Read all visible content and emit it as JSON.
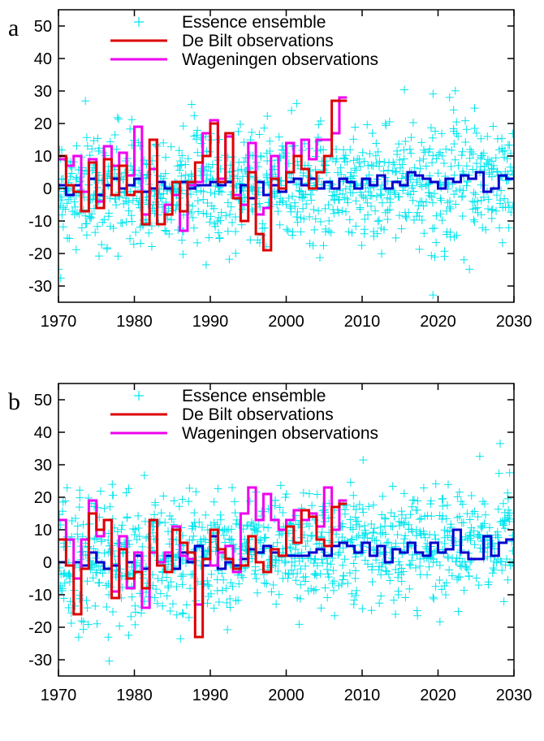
{
  "chart_data": [
    {
      "type": "line",
      "panel_label": "a",
      "xlim": [
        1970,
        2030
      ],
      "ylim": [
        -35,
        55
      ],
      "xticks": [
        1970,
        1980,
        1990,
        2000,
        2010,
        2020,
        2030
      ],
      "yticks": [
        -30,
        -20,
        -10,
        0,
        10,
        20,
        30,
        40,
        50
      ],
      "xtick_labels": [
        "1970",
        "1980",
        "1990",
        "2000",
        "2010",
        "2020",
        "2030"
      ],
      "ytick_labels": [
        "-30",
        "-20",
        "-10",
        "0",
        "10",
        "20",
        "30",
        "40",
        "50"
      ],
      "legend_position": "top-center",
      "series": [
        {
          "name": "Essence ensemble",
          "style": "scatter-plus",
          "color": "#00e5ee"
        },
        {
          "name": "De Bilt observations",
          "style": "step",
          "color": "#dd0000",
          "x": [
            1970,
            1971,
            1972,
            1973,
            1974,
            1975,
            1976,
            1977,
            1978,
            1979,
            1980,
            1981,
            1982,
            1983,
            1984,
            1985,
            1986,
            1987,
            1988,
            1989,
            1990,
            1991,
            1992,
            1993,
            1994,
            1995,
            1996,
            1997,
            1998,
            1999,
            2000,
            2001,
            2002,
            2003,
            2004,
            2005,
            2006,
            2007
          ],
          "y": [
            10,
            1,
            -1,
            -7,
            8,
            -6,
            9,
            -2,
            7,
            -2,
            -1,
            -11,
            15,
            -11,
            -8,
            2,
            -7,
            2,
            8,
            10,
            20,
            2,
            17,
            -3,
            -10,
            5,
            -14,
            -19,
            3,
            0,
            5,
            10,
            6,
            0,
            5,
            10,
            27,
            27
          ]
        },
        {
          "name": "Wageningen observations",
          "style": "step",
          "color": "#ee00ee",
          "x": [
            1970,
            1971,
            1972,
            1973,
            1974,
            1975,
            1976,
            1977,
            1978,
            1979,
            1980,
            1981,
            1982,
            1983,
            1984,
            1985,
            1986,
            1987,
            1988,
            1989,
            1990,
            1991,
            1992,
            1993,
            1994,
            1995,
            1996,
            1997,
            1998,
            1999,
            2000,
            2001,
            2002,
            2003,
            2004,
            2005,
            2006,
            2007
          ],
          "y": [
            9,
            7,
            10,
            -1,
            9,
            -4,
            13,
            7,
            11,
            4,
            19,
            -8,
            6,
            -11,
            -5,
            -2,
            -13,
            1,
            2,
            17,
            21,
            3,
            16,
            -2,
            -5,
            14,
            -8,
            -6,
            10,
            0,
            14,
            10,
            15,
            9,
            15,
            15,
            17,
            28
          ]
        },
        {
          "name": "",
          "style": "step",
          "color": "#0000cc",
          "x": [
            1970,
            1971,
            1972,
            1973,
            1974,
            1975,
            1976,
            1977,
            1978,
            1979,
            1980,
            1981,
            1982,
            1983,
            1984,
            1985,
            1986,
            1987,
            1988,
            1989,
            1990,
            1991,
            1992,
            1993,
            1994,
            1995,
            1996,
            1997,
            1998,
            1999,
            2000,
            2001,
            2002,
            2003,
            2004,
            2005,
            2006,
            2007,
            2008,
            2009,
            2010,
            2011,
            2012,
            2013,
            2014,
            2015,
            2016,
            2017,
            2018,
            2019,
            2020,
            2021,
            2022,
            2023,
            2024,
            2025,
            2026,
            2027,
            2028,
            2029
          ],
          "y": [
            1,
            -2,
            1,
            -1,
            3,
            -2,
            1,
            3,
            0,
            1,
            3,
            -1,
            0,
            2,
            0,
            -2,
            2,
            0,
            1,
            1,
            2,
            1,
            2,
            -3,
            1,
            -3,
            2,
            -2,
            1,
            -1,
            2,
            3,
            1,
            3,
            0,
            2,
            0,
            3,
            2,
            0,
            3,
            1,
            4,
            0,
            2,
            1,
            5,
            4,
            3,
            2,
            0,
            3,
            2,
            4,
            3,
            5,
            -1,
            0,
            4,
            3
          ]
        }
      ]
    },
    {
      "type": "line",
      "panel_label": "b",
      "xlim": [
        1970,
        2030
      ],
      "ylim": [
        -35,
        55
      ],
      "xticks": [
        1970,
        1980,
        1990,
        2000,
        2010,
        2020,
        2030
      ],
      "yticks": [
        -30,
        -20,
        -10,
        0,
        10,
        20,
        30,
        40,
        50
      ],
      "xtick_labels": [
        "1970",
        "1980",
        "1990",
        "2000",
        "2010",
        "2020",
        "2030"
      ],
      "ytick_labels": [
        "-30",
        "-20",
        "-10",
        "0",
        "10",
        "20",
        "30",
        "40",
        "50"
      ],
      "legend_position": "top-center",
      "series": [
        {
          "name": "Essence ensemble",
          "style": "scatter-plus",
          "color": "#00e5ee"
        },
        {
          "name": "De Bilt observations",
          "style": "step",
          "color": "#dd0000",
          "x": [
            1970,
            1971,
            1972,
            1973,
            1974,
            1975,
            1976,
            1977,
            1978,
            1979,
            1980,
            1981,
            1982,
            1983,
            1984,
            1985,
            1986,
            1987,
            1988,
            1989,
            1990,
            1991,
            1992,
            1993,
            1994,
            1995,
            1996,
            1997,
            1998,
            1999,
            2000,
            2001,
            2002,
            2003,
            2004,
            2005,
            2006,
            2007
          ],
          "y": [
            7,
            -1,
            -16,
            -2,
            15,
            10,
            13,
            -11,
            4,
            -5,
            -3,
            -8,
            13,
            -1,
            -3,
            10,
            6,
            3,
            -23,
            1,
            10,
            4,
            1,
            -2,
            -1,
            8,
            0,
            -3,
            4,
            2,
            11,
            6,
            16,
            14,
            7,
            5,
            17,
            18
          ]
        },
        {
          "name": "Wageningen observations",
          "style": "step",
          "color": "#ee00ee",
          "x": [
            1970,
            1971,
            1972,
            1973,
            1974,
            1975,
            1976,
            1977,
            1978,
            1979,
            1980,
            1981,
            1982,
            1983,
            1984,
            1985,
            1986,
            1987,
            1988,
            1989,
            1990,
            1991,
            1992,
            1993,
            1994,
            1995,
            1996,
            1997,
            1998,
            1999,
            2000,
            2001,
            2002,
            2003,
            2004,
            2005,
            2006,
            2007
          ],
          "y": [
            13,
            7,
            -5,
            7,
            19,
            8,
            13,
            -9,
            8,
            -8,
            3,
            -14,
            3,
            0,
            3,
            11,
            2,
            1,
            -13,
            1,
            -1,
            3,
            5,
            -3,
            15,
            23,
            13,
            21,
            13,
            10,
            13,
            16,
            13,
            15,
            11,
            23,
            10,
            19
          ]
        },
        {
          "name": "",
          "style": "step",
          "color": "#0000cc",
          "x": [
            1970,
            1971,
            1972,
            1973,
            1974,
            1975,
            1976,
            1977,
            1978,
            1979,
            1980,
            1981,
            1982,
            1983,
            1984,
            1985,
            1986,
            1987,
            1988,
            1989,
            1990,
            1991,
            1992,
            1993,
            1994,
            1995,
            1996,
            1997,
            1998,
            1999,
            2000,
            2001,
            2002,
            2003,
            2004,
            2005,
            2006,
            2007,
            2008,
            2009,
            2010,
            2011,
            2012,
            2013,
            2014,
            2015,
            2016,
            2017,
            2018,
            2019,
            2020,
            2021,
            2022,
            2023,
            2024,
            2025,
            2026,
            2027,
            2028,
            2029
          ],
          "y": [
            0,
            -1,
            0,
            -1,
            3,
            0,
            -2,
            -1,
            4,
            0,
            2,
            -2,
            3,
            0,
            2,
            -2,
            3,
            0,
            5,
            -1,
            8,
            -2,
            0,
            -1,
            1,
            4,
            3,
            5,
            3,
            2,
            2,
            2,
            2,
            3,
            4,
            2,
            5,
            6,
            5,
            3,
            6,
            2,
            5,
            0,
            4,
            3,
            6,
            3,
            2,
            6,
            3,
            4,
            10,
            3,
            1,
            1,
            8,
            2,
            6,
            7
          ]
        }
      ]
    }
  ]
}
